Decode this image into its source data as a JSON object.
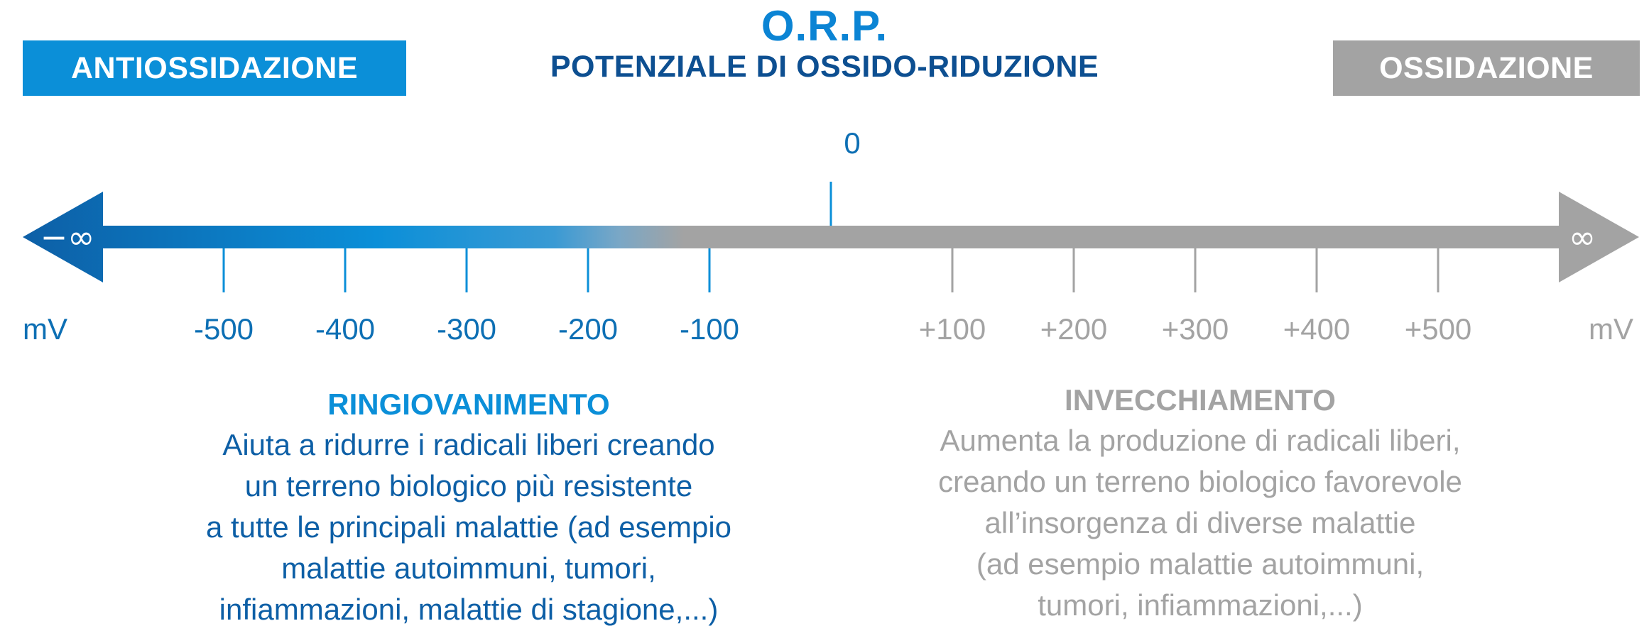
{
  "header": {
    "title": "O.R.P.",
    "subtitle": "POTENZIALE DI OSSIDO-RIDUZIONE",
    "left_tag": "ANTIOSSIDAZIONE",
    "right_tag": "OSSIDAZIONE"
  },
  "scale": {
    "zero_label": "0",
    "left_end": "−∞",
    "right_end": "∞",
    "unit_left": "mV",
    "unit_right": "mV",
    "negative_ticks": [
      "-500",
      "-400",
      "-300",
      "-200",
      "-100"
    ],
    "positive_ticks": [
      "+100",
      "+200",
      "+300",
      "+400",
      "+500"
    ]
  },
  "left_panel": {
    "title": "RINGIOVANIMENTO",
    "lines": [
      "Aiuta a ridurre i radicali liberi creando",
      "un terreno biologico più resistente",
      "a tutte le principali malattie (ad esempio",
      "malattie autoimmuni, tumori,",
      "infiammazioni, malattie di stagione,...)"
    ]
  },
  "right_panel": {
    "title": "INVECCHIAMENTO",
    "lines": [
      "Aumenta la produzione di radicali liberi,",
      "creando un terreno biologico favorevole",
      "all’insorgenza di diverse malattie",
      "(ad esempio malattie autoimmuni,",
      "tumori, infiammazioni,...)"
    ]
  },
  "colors": {
    "blue_dark": "#0d5fa6",
    "blue": "#0b8fd8",
    "navy": "#0d4f91",
    "gray": "#a3a3a3"
  }
}
